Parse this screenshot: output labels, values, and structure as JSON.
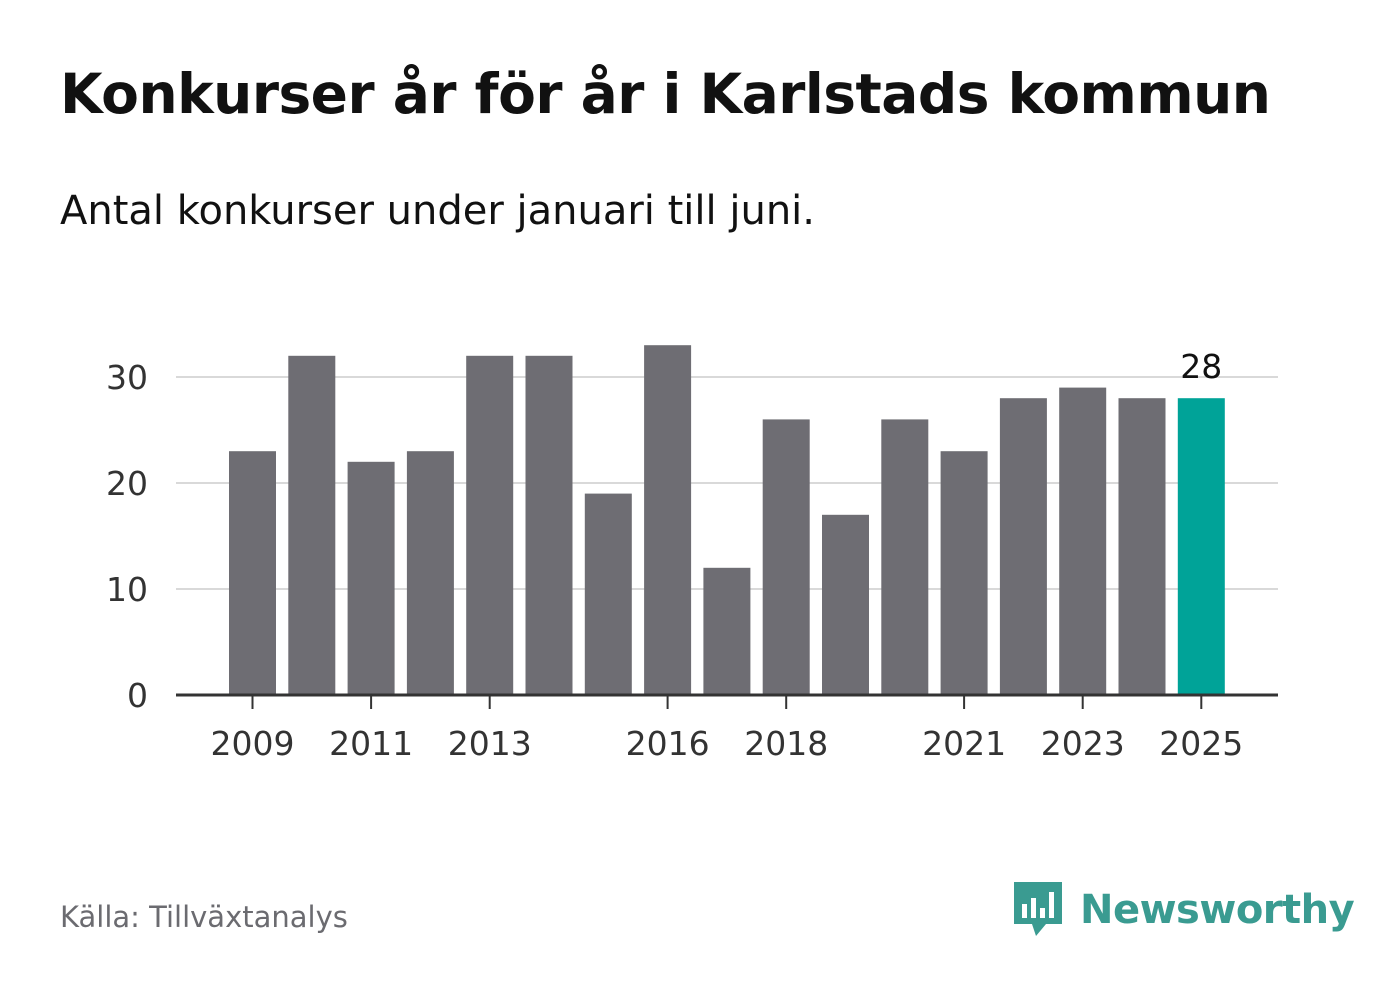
{
  "header": {
    "title": "Konkurser år för år i Karlstads kommun",
    "subtitle": "Antal konkurser under januari till juni."
  },
  "footer": {
    "source": "Källa: Tillväxtanalys",
    "brand": "Newsworthy",
    "brand_icon": "newsworthy-logo-icon"
  },
  "colors": {
    "bar": "#6e6d73",
    "highlight": "#00a398",
    "grid": "#d9d9d9",
    "axis": "#333333",
    "text": "#333333",
    "brand": "#3a9b91"
  },
  "chart_data": {
    "type": "bar",
    "categories": [
      2009,
      2010,
      2011,
      2012,
      2013,
      2014,
      2015,
      2016,
      2017,
      2018,
      2019,
      2020,
      2021,
      2022,
      2023,
      2024,
      2025
    ],
    "values": [
      23,
      32,
      22,
      23,
      32,
      32,
      19,
      33,
      12,
      26,
      17,
      26,
      23,
      28,
      29,
      28,
      28
    ],
    "x_tick_labels": [
      "2009",
      "2011",
      "2013",
      "2016",
      "2018",
      "2021",
      "2023",
      "2025"
    ],
    "y_ticks": [
      0,
      10,
      20,
      30
    ],
    "ylim": [
      0,
      33
    ],
    "grid": true,
    "highlight_category": 2025,
    "data_labels": [
      {
        "category": 2025,
        "label": "28"
      }
    ],
    "title": "Konkurser år för år i Karlstads kommun",
    "xlabel": "",
    "ylabel": ""
  }
}
